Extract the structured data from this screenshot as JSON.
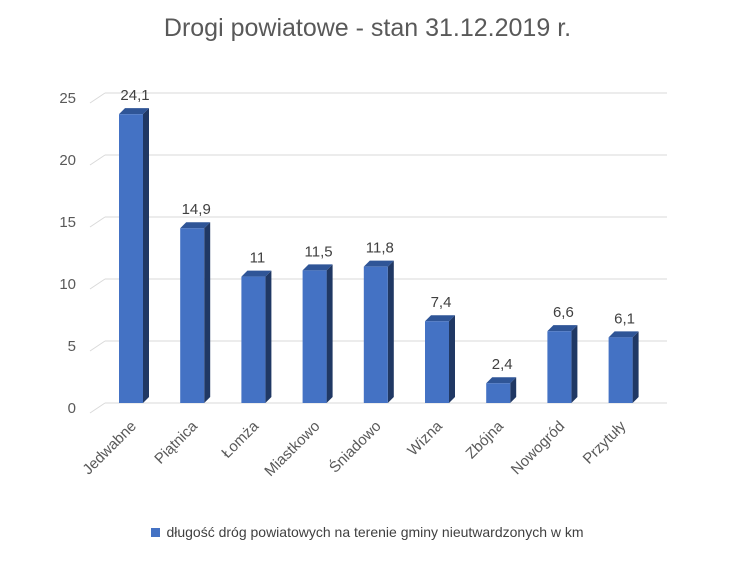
{
  "chart_data": {
    "type": "bar",
    "title": "Drogi powiatowe - stan 31.12.2019 r.",
    "xlabel": "",
    "ylabel": "",
    "categories": [
      "Jedwabne",
      "Piątnica",
      "Łomża",
      "Miastkowo",
      "Śniadowo",
      "Wizna",
      "Zbójna",
      "Nowogród",
      "Przytuły"
    ],
    "series": [
      {
        "name": "długość dróg powiatowych na terenie gminy nieutwardzonych w km",
        "values": [
          24.1,
          14.9,
          11,
          11.5,
          11.8,
          7.4,
          2.4,
          6.6,
          6.1
        ],
        "labels": [
          "24,1",
          "14,9",
          "11",
          "11,5",
          "11,8",
          "7,4",
          "2,4",
          "6,6",
          "6,1"
        ],
        "color": "#4472C4"
      }
    ],
    "ylim": [
      0,
      25
    ],
    "yticks": [
      0,
      5,
      10,
      15,
      20,
      25
    ],
    "grid": true,
    "legend_position": "bottom",
    "style": "3d-column"
  }
}
